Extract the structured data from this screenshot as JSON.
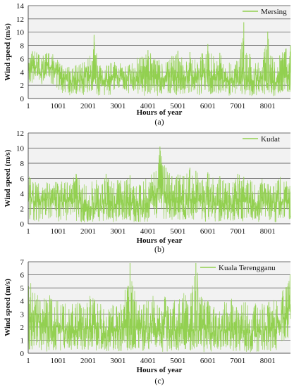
{
  "chart_data": [
    {
      "type": "line",
      "panel_caption": "(a)",
      "xlabel": "Hours of year",
      "ylabel": "Wind speed (m/s)",
      "xlim": [
        1,
        8760
      ],
      "ylim": [
        0,
        14
      ],
      "x_ticks": [
        1,
        1001,
        2001,
        3001,
        4001,
        5001,
        6001,
        7001,
        8001
      ],
      "y_ticks": [
        0,
        2,
        4,
        6,
        8,
        10,
        12,
        14
      ],
      "grid": true,
      "legend_position": "top-right",
      "series": [
        {
          "name": "Mersing",
          "color": "#92d050",
          "x": [
            1,
            201,
            401,
            601,
            801,
            1001,
            1201,
            1401,
            1601,
            1801,
            2001,
            2201,
            2401,
            2601,
            2801,
            3001,
            3201,
            3401,
            3601,
            3801,
            4001,
            4201,
            4401,
            4601,
            4801,
            5001,
            5201,
            5401,
            5601,
            5801,
            6001,
            6201,
            6401,
            6601,
            6801,
            7001,
            7201,
            7401,
            7601,
            7801,
            8001,
            8201,
            8401,
            8601,
            8760
          ],
          "mean": [
            4.6,
            4.9,
            4.2,
            5.0,
            4.6,
            3.6,
            2.8,
            2.6,
            2.7,
            3.0,
            3.4,
            3.0,
            2.6,
            2.8,
            3.2,
            3.0,
            2.7,
            2.8,
            3.0,
            2.9,
            3.3,
            3.2,
            2.8,
            3.4,
            3.0,
            3.2,
            2.8,
            3.6,
            3.1,
            3.4,
            3.9,
            3.2,
            3.4,
            2.6,
            2.8,
            3.0,
            3.1,
            2.4,
            2.6,
            2.9,
            2.5,
            2.4,
            2.8,
            3.3,
            3.9
          ],
          "max": [
            7.0,
            7.2,
            6.7,
            7.3,
            6.8,
            5.8,
            4.7,
            4.8,
            5.2,
            5.6,
            6.0,
            9.6,
            5.0,
            5.4,
            5.6,
            5.7,
            5.2,
            5.3,
            6.2,
            6.3,
            7.3,
            6.2,
            5.9,
            6.3,
            6.4,
            7.2,
            5.8,
            7.0,
            6.3,
            6.8,
            8.2,
            6.3,
            6.9,
            5.3,
            5.6,
            5.9,
            11.5,
            6.7,
            5.3,
            6.0,
            10.1,
            5.6,
            6.5,
            7.5,
            8.0
          ],
          "min": [
            2.0,
            2.6,
            1.8,
            2.4,
            2.2,
            1.3,
            0.7,
            0.5,
            0.6,
            0.6,
            0.5,
            0.5,
            0.4,
            0.5,
            0.6,
            0.5,
            0.4,
            0.5,
            0.5,
            0.4,
            0.5,
            0.5,
            0.4,
            0.5,
            0.4,
            0.5,
            0.4,
            0.6,
            0.5,
            0.5,
            0.6,
            0.5,
            0.5,
            0.4,
            0.4,
            0.5,
            0.5,
            0.4,
            0.4,
            0.5,
            0.4,
            0.4,
            0.5,
            0.6,
            0.8
          ]
        }
      ]
    },
    {
      "type": "line",
      "panel_caption": "(b)",
      "xlabel": "Hours of year",
      "ylabel": "Wind speed (m/s)",
      "xlim": [
        1,
        8760
      ],
      "ylim": [
        0,
        12
      ],
      "x_ticks": [
        1,
        1001,
        2001,
        3001,
        4001,
        5001,
        6001,
        7001,
        8001
      ],
      "y_ticks": [
        0,
        2,
        4,
        6,
        8,
        10,
        12
      ],
      "grid": true,
      "legend_position": "top-right",
      "series": [
        {
          "name": "Kudat",
          "color": "#92d050",
          "x": [
            1,
            201,
            401,
            601,
            801,
            1001,
            1201,
            1401,
            1601,
            1801,
            2001,
            2201,
            2401,
            2601,
            2801,
            3001,
            3201,
            3401,
            3601,
            3801,
            4001,
            4201,
            4401,
            4601,
            4801,
            5001,
            5201,
            5401,
            5601,
            5801,
            6001,
            6201,
            6401,
            6601,
            6801,
            7001,
            7201,
            7401,
            7601,
            7801,
            8001,
            8201,
            8401,
            8601,
            8760
          ],
          "mean": [
            3.3,
            3.1,
            2.9,
            3.2,
            3.3,
            2.8,
            3.0,
            2.9,
            3.3,
            2.6,
            2.5,
            2.7,
            2.4,
            2.8,
            2.5,
            2.7,
            2.6,
            2.8,
            2.6,
            2.5,
            3.0,
            3.1,
            4.9,
            3.6,
            3.0,
            3.0,
            2.8,
            3.3,
            3.2,
            2.9,
            3.1,
            2.8,
            3.0,
            2.7,
            2.6,
            3.0,
            2.9,
            2.8,
            2.6,
            2.9,
            2.8,
            2.7,
            3.0,
            2.9,
            3.1
          ],
          "max": [
            6.3,
            5.9,
            5.5,
            5.8,
            5.8,
            5.4,
            5.9,
            5.6,
            6.6,
            5.2,
            5.3,
            5.9,
            5.6,
            6.6,
            5.6,
            5.9,
            5.6,
            6.4,
            5.6,
            5.4,
            6.2,
            6.8,
            10.2,
            7.4,
            6.3,
            6.5,
            6.3,
            7.4,
            7.0,
            6.1,
            6.8,
            6.0,
            6.3,
            5.7,
            5.6,
            6.6,
            6.2,
            5.9,
            5.4,
            6.1,
            5.8,
            5.6,
            6.2,
            6.1,
            5.6
          ],
          "min": [
            0.5,
            0.4,
            0.3,
            0.4,
            0.4,
            0.3,
            0.4,
            0.3,
            0.4,
            0.2,
            0.2,
            0.3,
            0.2,
            0.3,
            0.2,
            0.3,
            0.2,
            0.3,
            0.2,
            0.2,
            0.3,
            0.4,
            1.0,
            0.5,
            0.3,
            0.3,
            0.3,
            0.4,
            0.4,
            0.3,
            0.3,
            0.3,
            0.3,
            0.2,
            0.2,
            0.3,
            0.3,
            0.3,
            0.2,
            0.3,
            0.3,
            0.2,
            0.3,
            0.3,
            0.4
          ]
        }
      ]
    },
    {
      "type": "line",
      "panel_caption": "(c)",
      "xlabel": "Hours of year",
      "ylabel": "Wind speed (m/s)",
      "xlim": [
        1,
        8760
      ],
      "ylim": [
        0,
        7
      ],
      "x_ticks": [
        1,
        1001,
        2001,
        3001,
        4001,
        5001,
        6001,
        7001,
        8001
      ],
      "y_ticks": [
        0,
        1,
        2,
        3,
        4,
        5,
        6,
        7
      ],
      "grid": true,
      "legend_position": "top-right",
      "series": [
        {
          "name": "Kuala Terengganu",
          "color": "#92d050",
          "x": [
            1,
            201,
            401,
            601,
            801,
            1001,
            1201,
            1401,
            1601,
            1801,
            2001,
            2201,
            2401,
            2601,
            2801,
            3001,
            3201,
            3401,
            3601,
            3801,
            4001,
            4201,
            4401,
            4601,
            4801,
            5001,
            5201,
            5401,
            5601,
            5801,
            6001,
            6201,
            6401,
            6601,
            6801,
            7001,
            7201,
            7401,
            7601,
            7801,
            8001,
            8201,
            8401,
            8601,
            8760
          ],
          "mean": [
            2.6,
            2.5,
            2.3,
            2.0,
            2.2,
            2.1,
            1.8,
            1.9,
            1.7,
            1.8,
            2.1,
            2.2,
            1.9,
            1.8,
            1.6,
            1.8,
            2.0,
            1.9,
            1.8,
            1.7,
            1.9,
            2.0,
            1.8,
            1.9,
            1.7,
            1.8,
            1.9,
            1.7,
            1.8,
            1.9,
            1.8,
            1.6,
            1.8,
            1.7,
            1.9,
            1.8,
            1.7,
            1.8,
            1.6,
            1.7,
            1.8,
            2.0,
            2.3,
            2.8,
            3.6
          ],
          "max": [
            5.8,
            4.8,
            4.4,
            4.2,
            4.6,
            4.5,
            3.8,
            4.3,
            3.9,
            3.8,
            4.4,
            4.3,
            4.0,
            3.9,
            3.7,
            4.0,
            4.6,
            6.9,
            4.3,
            3.9,
            4.4,
            4.6,
            4.1,
            5.0,
            4.1,
            4.2,
            5.0,
            4.1,
            6.9,
            4.5,
            4.2,
            3.8,
            4.1,
            4.0,
            4.4,
            4.2,
            4.0,
            4.1,
            3.8,
            3.9,
            4.0,
            4.3,
            4.8,
            5.4,
            6.4
          ],
          "min": [
            0.3,
            0.2,
            0.2,
            0.1,
            0.2,
            0.2,
            0.1,
            0.1,
            0.1,
            0.1,
            0.2,
            0.2,
            0.1,
            0.1,
            0.1,
            0.1,
            0.2,
            0.1,
            0.1,
            0.1,
            0.1,
            0.2,
            0.1,
            0.1,
            0.1,
            0.1,
            0.1,
            0.1,
            0.1,
            0.1,
            0.1,
            0.1,
            0.1,
            0.1,
            0.1,
            0.1,
            0.1,
            0.1,
            0.1,
            0.1,
            0.1,
            0.2,
            0.3,
            0.5,
            0.9
          ]
        }
      ]
    }
  ]
}
